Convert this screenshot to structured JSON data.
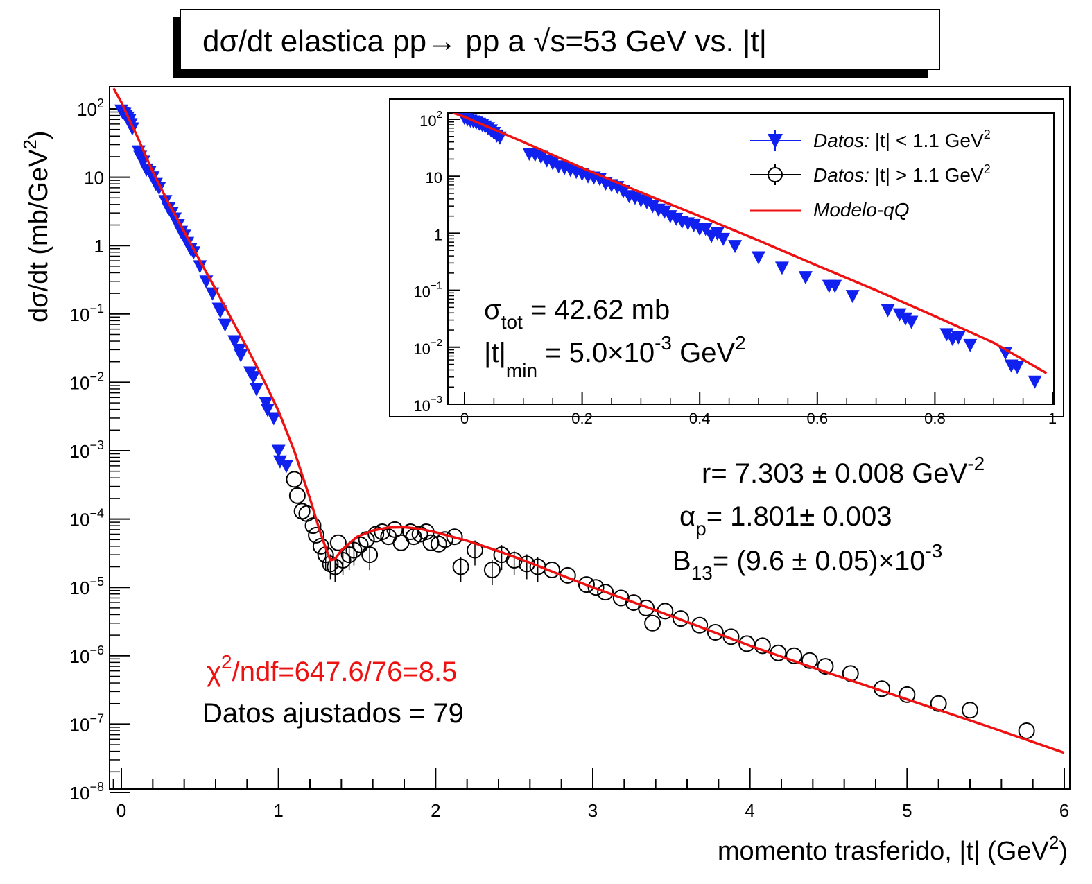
{
  "title": {
    "prefix": "dσ/dt elastica  pp→ pp a ",
    "sqrt_s": "√s",
    "suffix": "=53 GeV vs. |t|"
  },
  "main_axes": {
    "xlabel_prefix": "momento trasferido, |t| (GeV",
    "xlabel_sup": "2",
    "xlabel_suffix": ")",
    "ylabel_prefix": "dσ/dt (mb/GeV",
    "ylabel_sup": "2",
    "ylabel_suffix": ")",
    "x_ticks": [
      "0",
      "1",
      "2",
      "3",
      "4",
      "5",
      "6"
    ],
    "y_ticks": [
      {
        "base": "10",
        "exp": "2"
      },
      {
        "base": "10",
        "exp": ""
      },
      {
        "base": "1",
        "exp": ""
      },
      {
        "base": "10",
        "exp": "−1"
      },
      {
        "base": "10",
        "exp": "−2"
      },
      {
        "base": "10",
        "exp": "−3"
      },
      {
        "base": "10",
        "exp": "−4"
      },
      {
        "base": "10",
        "exp": "−5"
      },
      {
        "base": "10",
        "exp": "−6"
      },
      {
        "base": "10",
        "exp": "−7"
      },
      {
        "base": "10",
        "exp": "−8"
      }
    ]
  },
  "inset_axes": {
    "x_ticks": [
      "0",
      "0.2",
      "0.4",
      "0.6",
      "0.8",
      "1"
    ],
    "y_ticks": [
      {
        "base": "10",
        "exp": "2"
      },
      {
        "base": "10",
        "exp": ""
      },
      {
        "base": "1",
        "exp": ""
      },
      {
        "base": "10",
        "exp": "−1"
      },
      {
        "base": "10",
        "exp": "−2"
      },
      {
        "base": "10",
        "exp": "−3"
      }
    ]
  },
  "legend": {
    "entry1_italic": "Datos:",
    "entry1_rest": " |t| < 1.1 GeV",
    "entry1_sup": "2",
    "entry2_italic": "Datos:",
    "entry2_rest": " |t| > 1.1 GeV",
    "entry2_sup": "2",
    "entry3": "Modelo-qQ"
  },
  "annotations": {
    "sigma_sym": "σ",
    "sigma_sub": "tot",
    "sigma_val": " = 42.62 mb",
    "tmin_sym": "|t|",
    "tmin_sub": "min",
    "tmin_val": " = 5.0×10",
    "tmin_exp": "-3",
    "tmin_unit": " GeV",
    "tmin_unit_exp": "2",
    "r_text": "r= 7.303 ± 0.008 GeV",
    "r_exp": "-2",
    "alpha_sym": "α",
    "alpha_sub": "p",
    "alpha_val": "= 1.801± 0.003",
    "b_sym": "B",
    "b_sub": "13",
    "b_val": "= (9.6 ± 0.05)×10",
    "b_exp": "-3",
    "chi_sym": "χ",
    "chi_exp": "2",
    "chi_val": "/ndf=647.6/76=8.5",
    "ndata": "Datos ajustados = 79"
  },
  "colors": {
    "model": "#ee1111",
    "data_low": "#1020ee",
    "data_high": "#000000",
    "chi_text": "#ee1111"
  },
  "chart_data": [
    {
      "type": "scatter",
      "panel": "main",
      "xlim": [
        -0.05,
        6
      ],
      "ylim": [
        1e-08,
        200
      ],
      "yscale": "log",
      "grid": false,
      "legend_position": "top-right (inset)",
      "series": [
        {
          "name": "Datos: |t| < 1.1 GeV2",
          "marker": "triangle-down",
          "points": [
            [
              0.0,
              95
            ],
            [
              0.01,
              88
            ],
            [
              0.02,
              85
            ],
            [
              0.03,
              80
            ],
            [
              0.04,
              75
            ],
            [
              0.05,
              68
            ],
            [
              0.06,
              60
            ],
            [
              0.07,
              52
            ],
            [
              0.11,
              24
            ],
            [
              0.12,
              20
            ],
            [
              0.14,
              17
            ],
            [
              0.16,
              13
            ],
            [
              0.18,
              12
            ],
            [
              0.2,
              10
            ],
            [
              0.22,
              8
            ],
            [
              0.24,
              7
            ],
            [
              0.28,
              4.5
            ],
            [
              0.3,
              3.5
            ],
            [
              0.32,
              3.0
            ],
            [
              0.34,
              2.5
            ],
            [
              0.36,
              2.0
            ],
            [
              0.38,
              1.6
            ],
            [
              0.4,
              1.4
            ],
            [
              0.42,
              1.1
            ],
            [
              0.44,
              0.9
            ],
            [
              0.46,
              0.8
            ],
            [
              0.5,
              0.5
            ],
            [
              0.54,
              0.3
            ],
            [
              0.58,
              0.2
            ],
            [
              0.62,
              0.12
            ],
            [
              0.63,
              0.11
            ],
            [
              0.66,
              0.07
            ],
            [
              0.72,
              0.04
            ],
            [
              0.75,
              0.03
            ],
            [
              0.76,
              0.025
            ],
            [
              0.82,
              0.014
            ],
            [
              0.84,
              0.012
            ],
            [
              0.86,
              0.008
            ],
            [
              0.92,
              0.005
            ],
            [
              0.93,
              0.004
            ],
            [
              0.97,
              0.003
            ],
            [
              1.0,
              0.001
            ],
            [
              1.01,
              0.0007
            ],
            [
              1.05,
              0.0006
            ]
          ]
        },
        {
          "name": "Datos: |t| > 1.1 GeV2",
          "marker": "open-circle",
          "points": [
            [
              1.1,
              0.00038
            ],
            [
              1.12,
              0.00022
            ],
            [
              1.15,
              0.00013
            ],
            [
              1.18,
              0.00012
            ],
            [
              1.22,
              8e-05
            ],
            [
              1.24,
              5.8e-05
            ],
            [
              1.27,
              4e-05
            ],
            [
              1.3,
              3e-05
            ],
            [
              1.33,
              2.2e-05
            ],
            [
              1.36,
              2e-05
            ],
            [
              1.38,
              4.5e-05
            ],
            [
              1.41,
              2.5e-05
            ],
            [
              1.45,
              3e-05
            ],
            [
              1.48,
              3.5e-05
            ],
            [
              1.52,
              4.2e-05
            ],
            [
              1.56,
              5e-05
            ],
            [
              1.58,
              3e-05
            ],
            [
              1.62,
              6e-05
            ],
            [
              1.66,
              6.5e-05
            ],
            [
              1.7,
              5.5e-05
            ],
            [
              1.74,
              7e-05
            ],
            [
              1.78,
              4.5e-05
            ],
            [
              1.84,
              6.5e-05
            ],
            [
              1.86,
              5.5e-05
            ],
            [
              1.9,
              6e-05
            ],
            [
              1.94,
              6.5e-05
            ],
            [
              1.97,
              4.5e-05
            ],
            [
              2.02,
              4.3e-05
            ],
            [
              2.06,
              5e-05
            ],
            [
              2.12,
              5.5e-05
            ],
            [
              2.16,
              2e-05
            ],
            [
              2.25,
              3.5e-05
            ],
            [
              2.36,
              1.8e-05
            ],
            [
              2.42,
              3e-05
            ],
            [
              2.5,
              2.5e-05
            ],
            [
              2.58,
              2.2e-05
            ],
            [
              2.65,
              2e-05
            ],
            [
              2.74,
              1.8e-05
            ],
            [
              2.84,
              1.5e-05
            ],
            [
              2.96,
              1.1e-05
            ],
            [
              3.02,
              1e-05
            ],
            [
              3.08,
              8.5e-06
            ],
            [
              3.18,
              7e-06
            ],
            [
              3.26,
              6e-06
            ],
            [
              3.34,
              5e-06
            ],
            [
              3.38,
              3e-06
            ],
            [
              3.46,
              4.5e-06
            ],
            [
              3.56,
              3.5e-06
            ],
            [
              3.68,
              2.8e-06
            ],
            [
              3.78,
              2.2e-06
            ],
            [
              3.88,
              1.9e-06
            ],
            [
              3.98,
              1.5e-06
            ],
            [
              4.08,
              1.4e-06
            ],
            [
              4.18,
              1.1e-06
            ],
            [
              4.28,
              1e-06
            ],
            [
              4.38,
              8.5e-07
            ],
            [
              4.48,
              7e-07
            ],
            [
              4.64,
              5.5e-07
            ],
            [
              4.84,
              3.3e-07
            ],
            [
              5.0,
              2.7e-07
            ],
            [
              5.2,
              2e-07
            ],
            [
              5.4,
              1.6e-07
            ],
            [
              5.76,
              8e-08
            ]
          ]
        },
        {
          "name": "Modelo-qQ",
          "type": "line",
          "points": [
            [
              -0.05,
              200
            ],
            [
              0.0,
              125
            ],
            [
              0.05,
              70
            ],
            [
              0.1,
              40
            ],
            [
              0.2,
              12
            ],
            [
              0.3,
              4.2
            ],
            [
              0.4,
              1.6
            ],
            [
              0.5,
              0.6
            ],
            [
              0.6,
              0.23
            ],
            [
              0.7,
              0.085
            ],
            [
              0.8,
              0.032
            ],
            [
              0.9,
              0.0115
            ],
            [
              1.0,
              0.0038
            ],
            [
              1.1,
              0.001
            ],
            [
              1.2,
              0.0002
            ],
            [
              1.26,
              7e-05
            ],
            [
              1.3,
              3.8e-05
            ],
            [
              1.33,
              2.5e-05
            ],
            [
              1.36,
              2.6e-05
            ],
            [
              1.4,
              3.5e-05
            ],
            [
              1.5,
              5.5e-05
            ],
            [
              1.6,
              6.8e-05
            ],
            [
              1.7,
              7.5e-05
            ],
            [
              1.8,
              7.6e-05
            ],
            [
              1.9,
              7.2e-05
            ],
            [
              2.0,
              6.4e-05
            ],
            [
              2.2,
              4.8e-05
            ],
            [
              2.4,
              3.4e-05
            ],
            [
              2.6,
              2.3e-05
            ],
            [
              2.8,
              1.5e-05
            ],
            [
              3.0,
              1e-05
            ],
            [
              3.5,
              3.8e-06
            ],
            [
              4.0,
              1.4e-06
            ],
            [
              4.5,
              5.6e-07
            ],
            [
              5.0,
              2.3e-07
            ],
            [
              5.5,
              9.5e-08
            ],
            [
              6.0,
              3.8e-08
            ]
          ]
        }
      ]
    },
    {
      "type": "scatter",
      "panel": "inset",
      "xlim": [
        -0.03,
        1.0
      ],
      "ylim": [
        0.001,
        200
      ],
      "yscale": "log",
      "series": [
        {
          "name": "Datos: |t| < 1.1 GeV2",
          "marker": "triangle-down",
          "points": [
            [
              0.0,
              105
            ],
            [
              0.005,
              100
            ],
            [
              0.01,
              95
            ],
            [
              0.015,
              92
            ],
            [
              0.02,
              88
            ],
            [
              0.025,
              84
            ],
            [
              0.03,
              80
            ],
            [
              0.035,
              75
            ],
            [
              0.04,
              70
            ],
            [
              0.045,
              64
            ],
            [
              0.05,
              58
            ],
            [
              0.055,
              52
            ],
            [
              0.06,
              48
            ],
            [
              0.11,
              25
            ],
            [
              0.12,
              24
            ],
            [
              0.13,
              22
            ],
            [
              0.14,
              19
            ],
            [
              0.15,
              17
            ],
            [
              0.16,
              15
            ],
            [
              0.17,
              14
            ],
            [
              0.18,
              13
            ],
            [
              0.19,
              12
            ],
            [
              0.2,
              11
            ],
            [
              0.21,
              10
            ],
            [
              0.22,
              9.5
            ],
            [
              0.23,
              9
            ],
            [
              0.24,
              7.5
            ],
            [
              0.25,
              7
            ],
            [
              0.26,
              6.5
            ],
            [
              0.27,
              5.5
            ],
            [
              0.28,
              4.5
            ],
            [
              0.29,
              4.2
            ],
            [
              0.3,
              3.8
            ],
            [
              0.31,
              3.5
            ],
            [
              0.32,
              3.0
            ],
            [
              0.33,
              2.6
            ],
            [
              0.34,
              2.4
            ],
            [
              0.35,
              2.0
            ],
            [
              0.36,
              1.8
            ],
            [
              0.37,
              1.6
            ],
            [
              0.38,
              1.5
            ],
            [
              0.39,
              1.4
            ],
            [
              0.4,
              1.2
            ],
            [
              0.41,
              1.2
            ],
            [
              0.42,
              0.9
            ],
            [
              0.43,
              1.0
            ],
            [
              0.44,
              0.8
            ],
            [
              0.46,
              0.6
            ],
            [
              0.5,
              0.38
            ],
            [
              0.54,
              0.25
            ],
            [
              0.58,
              0.17
            ],
            [
              0.62,
              0.12
            ],
            [
              0.63,
              0.12
            ],
            [
              0.66,
              0.08
            ],
            [
              0.72,
              0.045
            ],
            [
              0.74,
              0.038
            ],
            [
              0.75,
              0.032
            ],
            [
              0.76,
              0.028
            ],
            [
              0.82,
              0.017
            ],
            [
              0.83,
              0.014
            ],
            [
              0.84,
              0.015
            ],
            [
              0.86,
              0.011
            ],
            [
              0.92,
              0.008
            ],
            [
              0.93,
              0.0048
            ],
            [
              0.94,
              0.0045
            ],
            [
              0.97,
              0.0025
            ]
          ]
        },
        {
          "name": "Modelo-qQ",
          "type": "line",
          "points": [
            [
              -0.02,
              130
            ],
            [
              0.0,
              110
            ],
            [
              0.1,
              40
            ],
            [
              0.2,
              14
            ],
            [
              0.3,
              5.2
            ],
            [
              0.4,
              2.0
            ],
            [
              0.5,
              0.75
            ],
            [
              0.6,
              0.27
            ],
            [
              0.7,
              0.1
            ],
            [
              0.8,
              0.035
            ],
            [
              0.9,
              0.012
            ],
            [
              0.99,
              0.0035
            ]
          ]
        }
      ]
    }
  ]
}
